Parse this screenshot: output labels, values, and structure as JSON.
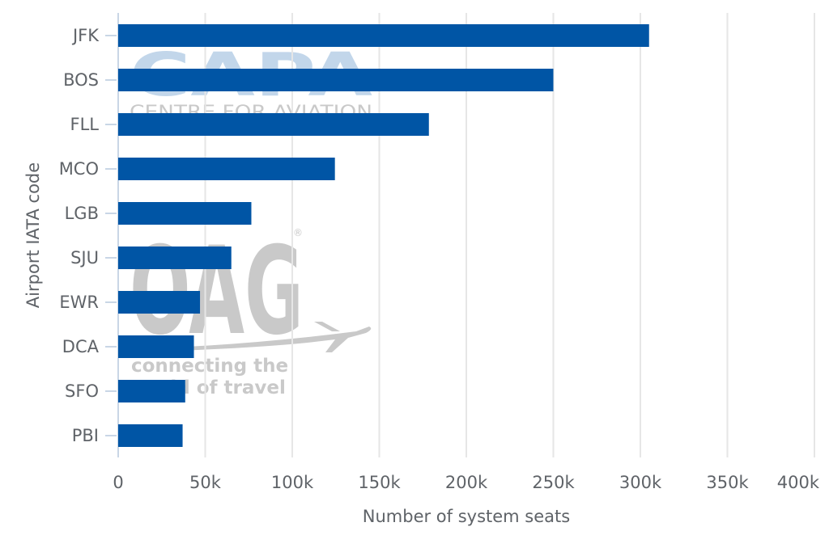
{
  "chart_data": {
    "type": "bar",
    "orientation": "horizontal",
    "title": "",
    "xlabel": "Number of system seats",
    "ylabel": "Airport IATA code",
    "categories": [
      "JFK",
      "BOS",
      "FLL",
      "MCO",
      "LGB",
      "SJU",
      "EWR",
      "DCA",
      "SFO",
      "PBI"
    ],
    "values": [
      305000,
      250000,
      178500,
      124500,
      76500,
      65000,
      47000,
      43500,
      38500,
      37000
    ],
    "xlim": [
      0,
      400000
    ],
    "xticks": [
      0,
      50000,
      100000,
      150000,
      200000,
      250000,
      300000,
      350000,
      400000
    ],
    "xtick_labels": [
      "0",
      "50k",
      "100k",
      "150k",
      "200k",
      "250k",
      "300k",
      "350k",
      "400k"
    ],
    "grid": true,
    "legend": "none"
  },
  "colors": {
    "bar": "#0055a5",
    "grid": "#e6e6e6",
    "axis_text": "#5f6368",
    "watermark_blue": "#c2d6ea",
    "watermark_gray": "#c9c9c9"
  },
  "watermarks": {
    "capa_logo": "CAPA",
    "capa_tagline": "CENTRE FOR AVIATION",
    "oag_logo": "OAG",
    "oag_tagline_1": "connecting the",
    "oag_tagline_2": "world of travel"
  }
}
